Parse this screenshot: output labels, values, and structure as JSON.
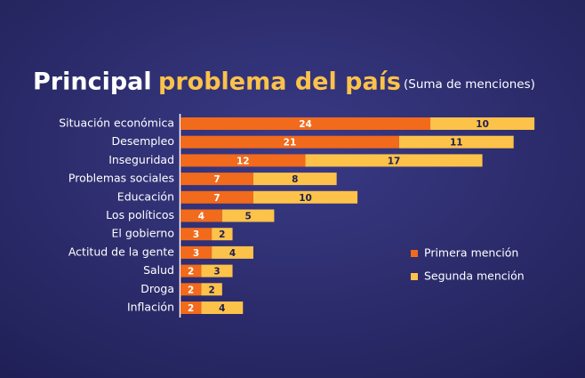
{
  "chart_data": {
    "type": "stacked-bar-horizontal",
    "title": "Principal",
    "title_accent": "problema del país",
    "subtitle": "(Suma de menciones)",
    "categories": [
      "Situación económica",
      "Desempleo",
      "Inseguridad",
      "Problemas sociales",
      "Educación",
      "Los políticos",
      "El gobierno",
      "Actitud de la gente",
      "Salud",
      "Droga",
      "Inflación"
    ],
    "series": [
      {
        "name": "Primera mención",
        "color": "#f26a1b",
        "values": [
          24,
          21,
          12,
          7,
          7,
          4,
          3,
          3,
          2,
          2,
          2
        ]
      },
      {
        "name": "Segunda mención",
        "color": "#fcc24a",
        "values": [
          10,
          11,
          17,
          8,
          10,
          5,
          2,
          4,
          3,
          2,
          4
        ]
      }
    ]
  }
}
